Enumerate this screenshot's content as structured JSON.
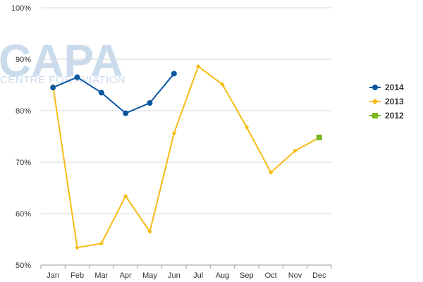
{
  "watermark": {
    "logo": "CAPA",
    "tagline": "CENTRE FOR AVIATION"
  },
  "colors": {
    "2014": "#0a57a0",
    "2013": "#f6bb15",
    "2012": "#7ab51d",
    "grid": "#d9d9d9",
    "axis": "#999999"
  },
  "chart_data": {
    "type": "line",
    "title": "",
    "xlabel": "",
    "ylabel": "",
    "categories": [
      "Jan",
      "Feb",
      "Mar",
      "Apr",
      "May",
      "Jun",
      "Jul",
      "Aug",
      "Sep",
      "Oct",
      "Nov",
      "Dec"
    ],
    "y_ticks": [
      "50%",
      "60%",
      "70%",
      "80%",
      "90%",
      "100%"
    ],
    "ylim": [
      50,
      100
    ],
    "grid": true,
    "legend_position": "right",
    "series": [
      {
        "name": "2014",
        "marker": "circle",
        "values": [
          84.5,
          86.5,
          83.5,
          79.5,
          81.5,
          87.2,
          null,
          null,
          null,
          null,
          null,
          null
        ]
      },
      {
        "name": "2013",
        "marker": "diamond",
        "values": [
          84.8,
          53.4,
          54.2,
          63.4,
          56.5,
          75.6,
          88.6,
          85.1,
          76.8,
          68.0,
          72.2,
          74.8
        ]
      },
      {
        "name": "2012",
        "marker": "square",
        "values": [
          null,
          null,
          null,
          null,
          null,
          null,
          null,
          null,
          null,
          null,
          null,
          74.8
        ]
      }
    ]
  }
}
